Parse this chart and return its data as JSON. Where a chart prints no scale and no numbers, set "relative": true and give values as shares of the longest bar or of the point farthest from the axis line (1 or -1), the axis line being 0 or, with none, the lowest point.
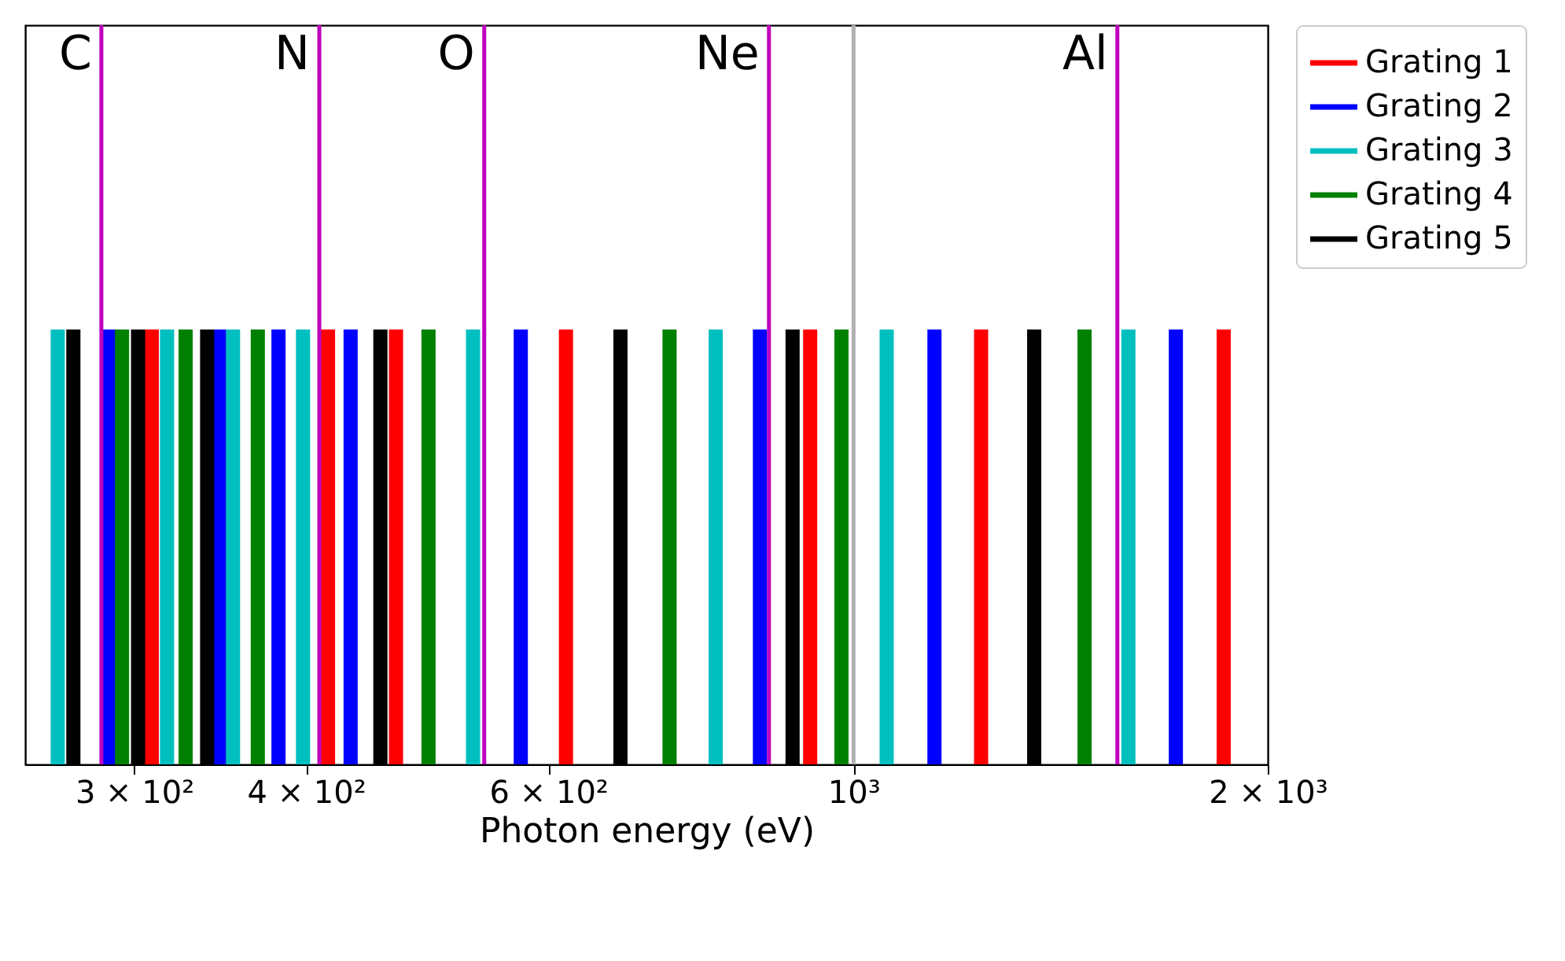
{
  "chart_data": {
    "type": "bar",
    "relative": true,
    "xlabel": "Photon energy (eV)",
    "log": "x",
    "xlim": [
      250,
      2000
    ],
    "xticks": [
      {
        "value": 300,
        "label": "3 × 10²"
      },
      {
        "value": 400,
        "label": "4 × 10²"
      },
      {
        "value": 600,
        "label": "6 × 10²"
      },
      {
        "value": 1000,
        "label": "10³"
      },
      {
        "value": 2000,
        "label": "2 × 10³"
      }
    ],
    "series": [
      {
        "name": "Grating 1",
        "color": "#ff0000",
        "x": [
          309,
          415,
          465,
          618,
          930,
          1238,
          1858
        ],
        "values": [
          1,
          1,
          1,
          1,
          1,
          1,
          1
        ]
      },
      {
        "name": "Grating 2",
        "color": "#0000ff",
        "x": [
          288,
          346,
          382,
          431,
          573,
          855,
          1145,
          1715
        ],
        "values": [
          1,
          1,
          1,
          1,
          1,
          1,
          1,
          1
        ]
      },
      {
        "name": "Grating 3",
        "color": "#00bfbf",
        "x": [
          264,
          317,
          354,
          398,
          529,
          794,
          1057,
          1584
        ],
        "values": [
          1,
          1,
          1,
          1,
          1,
          1,
          1,
          1
        ]
      },
      {
        "name": "Grating 4",
        "color": "#008000",
        "x": [
          294,
          327,
          369,
          491,
          735,
          980,
          1472
        ],
        "values": [
          1,
          1,
          1,
          1,
          1,
          1,
          1
        ]
      },
      {
        "name": "Grating 5",
        "color": "#000000",
        "x": [
          271,
          302,
          339,
          453,
          677,
          903,
          1353
        ],
        "values": [
          1,
          1,
          1,
          1,
          1,
          1,
          1
        ]
      }
    ],
    "ref_lines": [
      {
        "axis": "x",
        "value": 1000,
        "label": null,
        "color": "#b0b0b0"
      },
      {
        "axis": "x",
        "value": 284,
        "label": "C",
        "color": "#bf00bf"
      },
      {
        "axis": "x",
        "value": 409,
        "label": "N",
        "color": "#bf00bf"
      },
      {
        "axis": "x",
        "value": 539,
        "label": "O",
        "color": "#bf00bf"
      },
      {
        "axis": "x",
        "value": 868,
        "label": "Ne",
        "color": "#bf00bf"
      },
      {
        "axis": "x",
        "value": 1555,
        "label": "Al",
        "color": "#bf00bf"
      }
    ],
    "legend": "right"
  }
}
